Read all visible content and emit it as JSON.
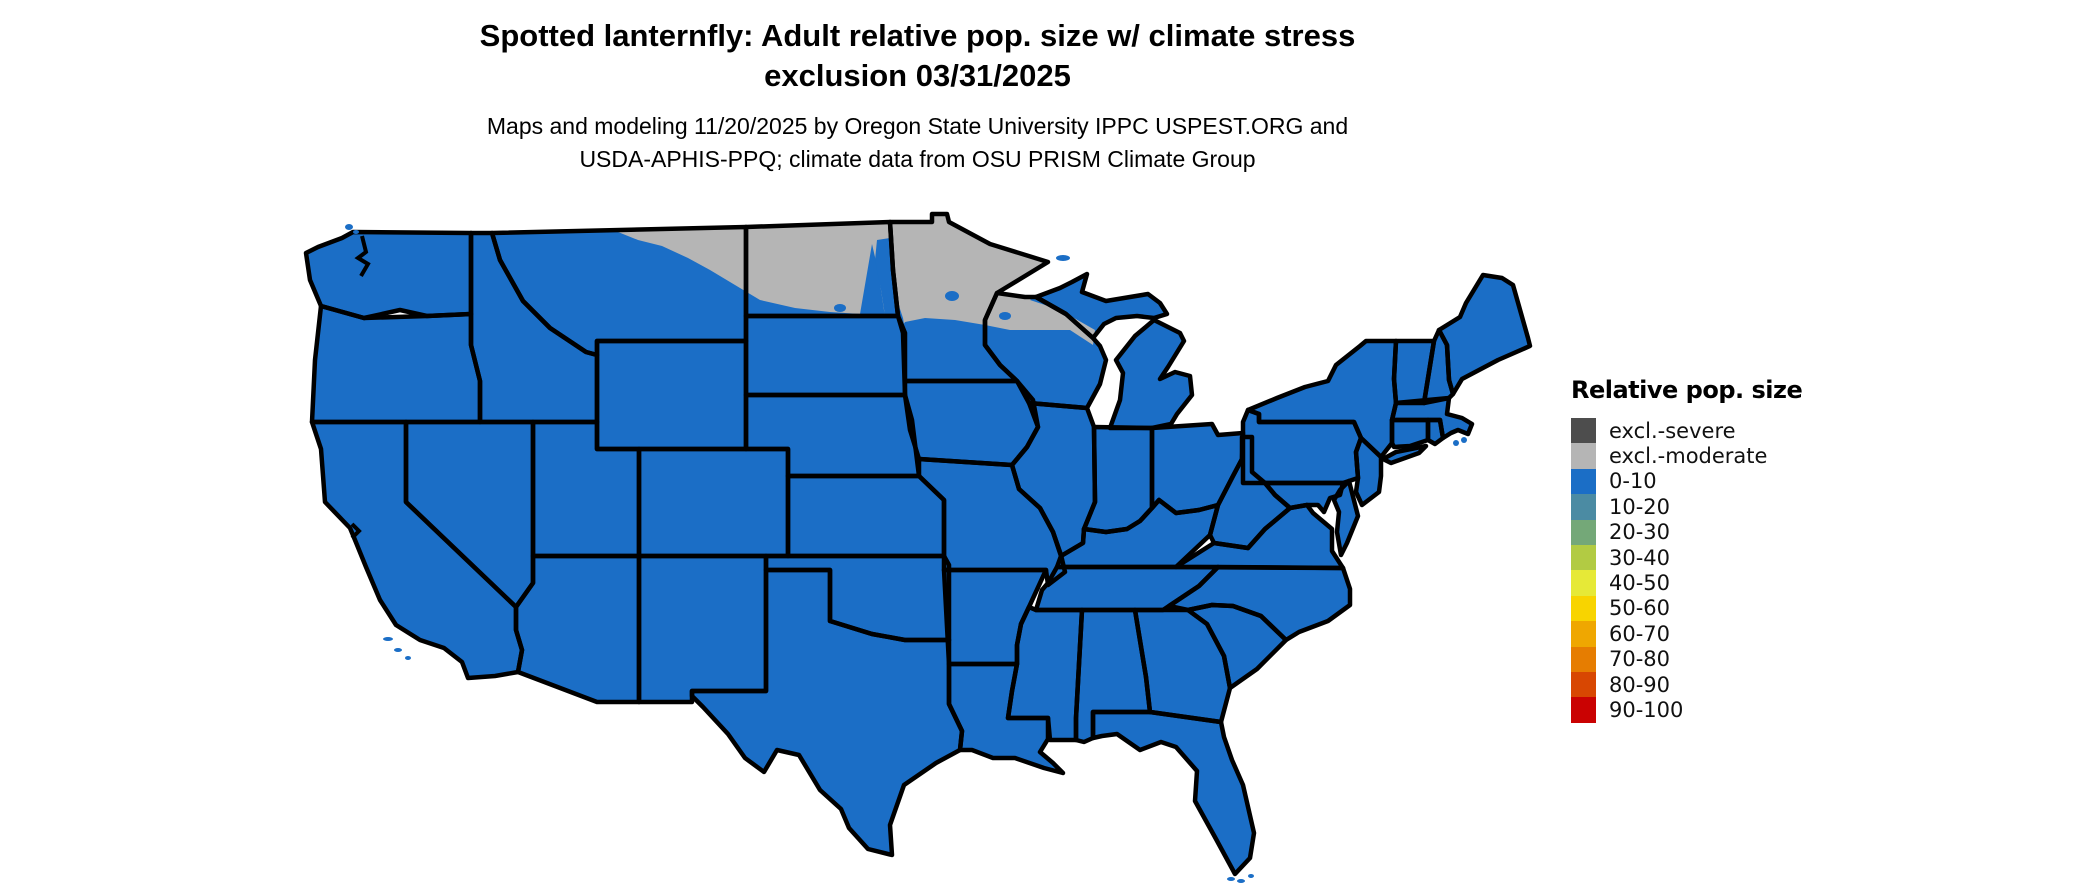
{
  "figure": {
    "title_line1": "Spotted lanternfly: Adult relative pop. size w/ climate stress",
    "title_line2": "exclusion 03/31/2025",
    "subtitle_line1": "Maps and modeling 11/20/2025 by Oregon State University IPPC USPEST.ORG and",
    "subtitle_line2": "USDA-APHIS-PPQ; climate data from OSU PRISM Climate Group"
  },
  "legend": {
    "title": "Relative pop. size",
    "items": [
      {
        "label": "excl.-severe",
        "color": "#4d4d4d"
      },
      {
        "label": "excl.-moderate",
        "color": "#b5b5b5"
      },
      {
        "label": "0-10",
        "color": "#1b6ec6"
      },
      {
        "label": "10-20",
        "color": "#4b8ba3"
      },
      {
        "label": "20-30",
        "color": "#74a878"
      },
      {
        "label": "30-40",
        "color": "#b2cb43"
      },
      {
        "label": "40-50",
        "color": "#e6e937"
      },
      {
        "label": "50-60",
        "color": "#f8d400"
      },
      {
        "label": "60-70",
        "color": "#efa701"
      },
      {
        "label": "70-80",
        "color": "#e67d01"
      },
      {
        "label": "80-90",
        "color": "#d84702"
      },
      {
        "label": "90-100",
        "color": "#ca0202"
      }
    ]
  },
  "map": {
    "region": "Continental United States",
    "land_value_class": "0-10",
    "land_fill_color": "#1b6ec6",
    "exclusion_value_class": "excl.-moderate",
    "exclusion_fill_color": "#b5b5b5",
    "exclusion_area_note": "northern Montana strip, most of North Dakota, northern Minnesota, far northern Wisconsin",
    "border_color": "#000000",
    "water_color": "#ffffff"
  }
}
